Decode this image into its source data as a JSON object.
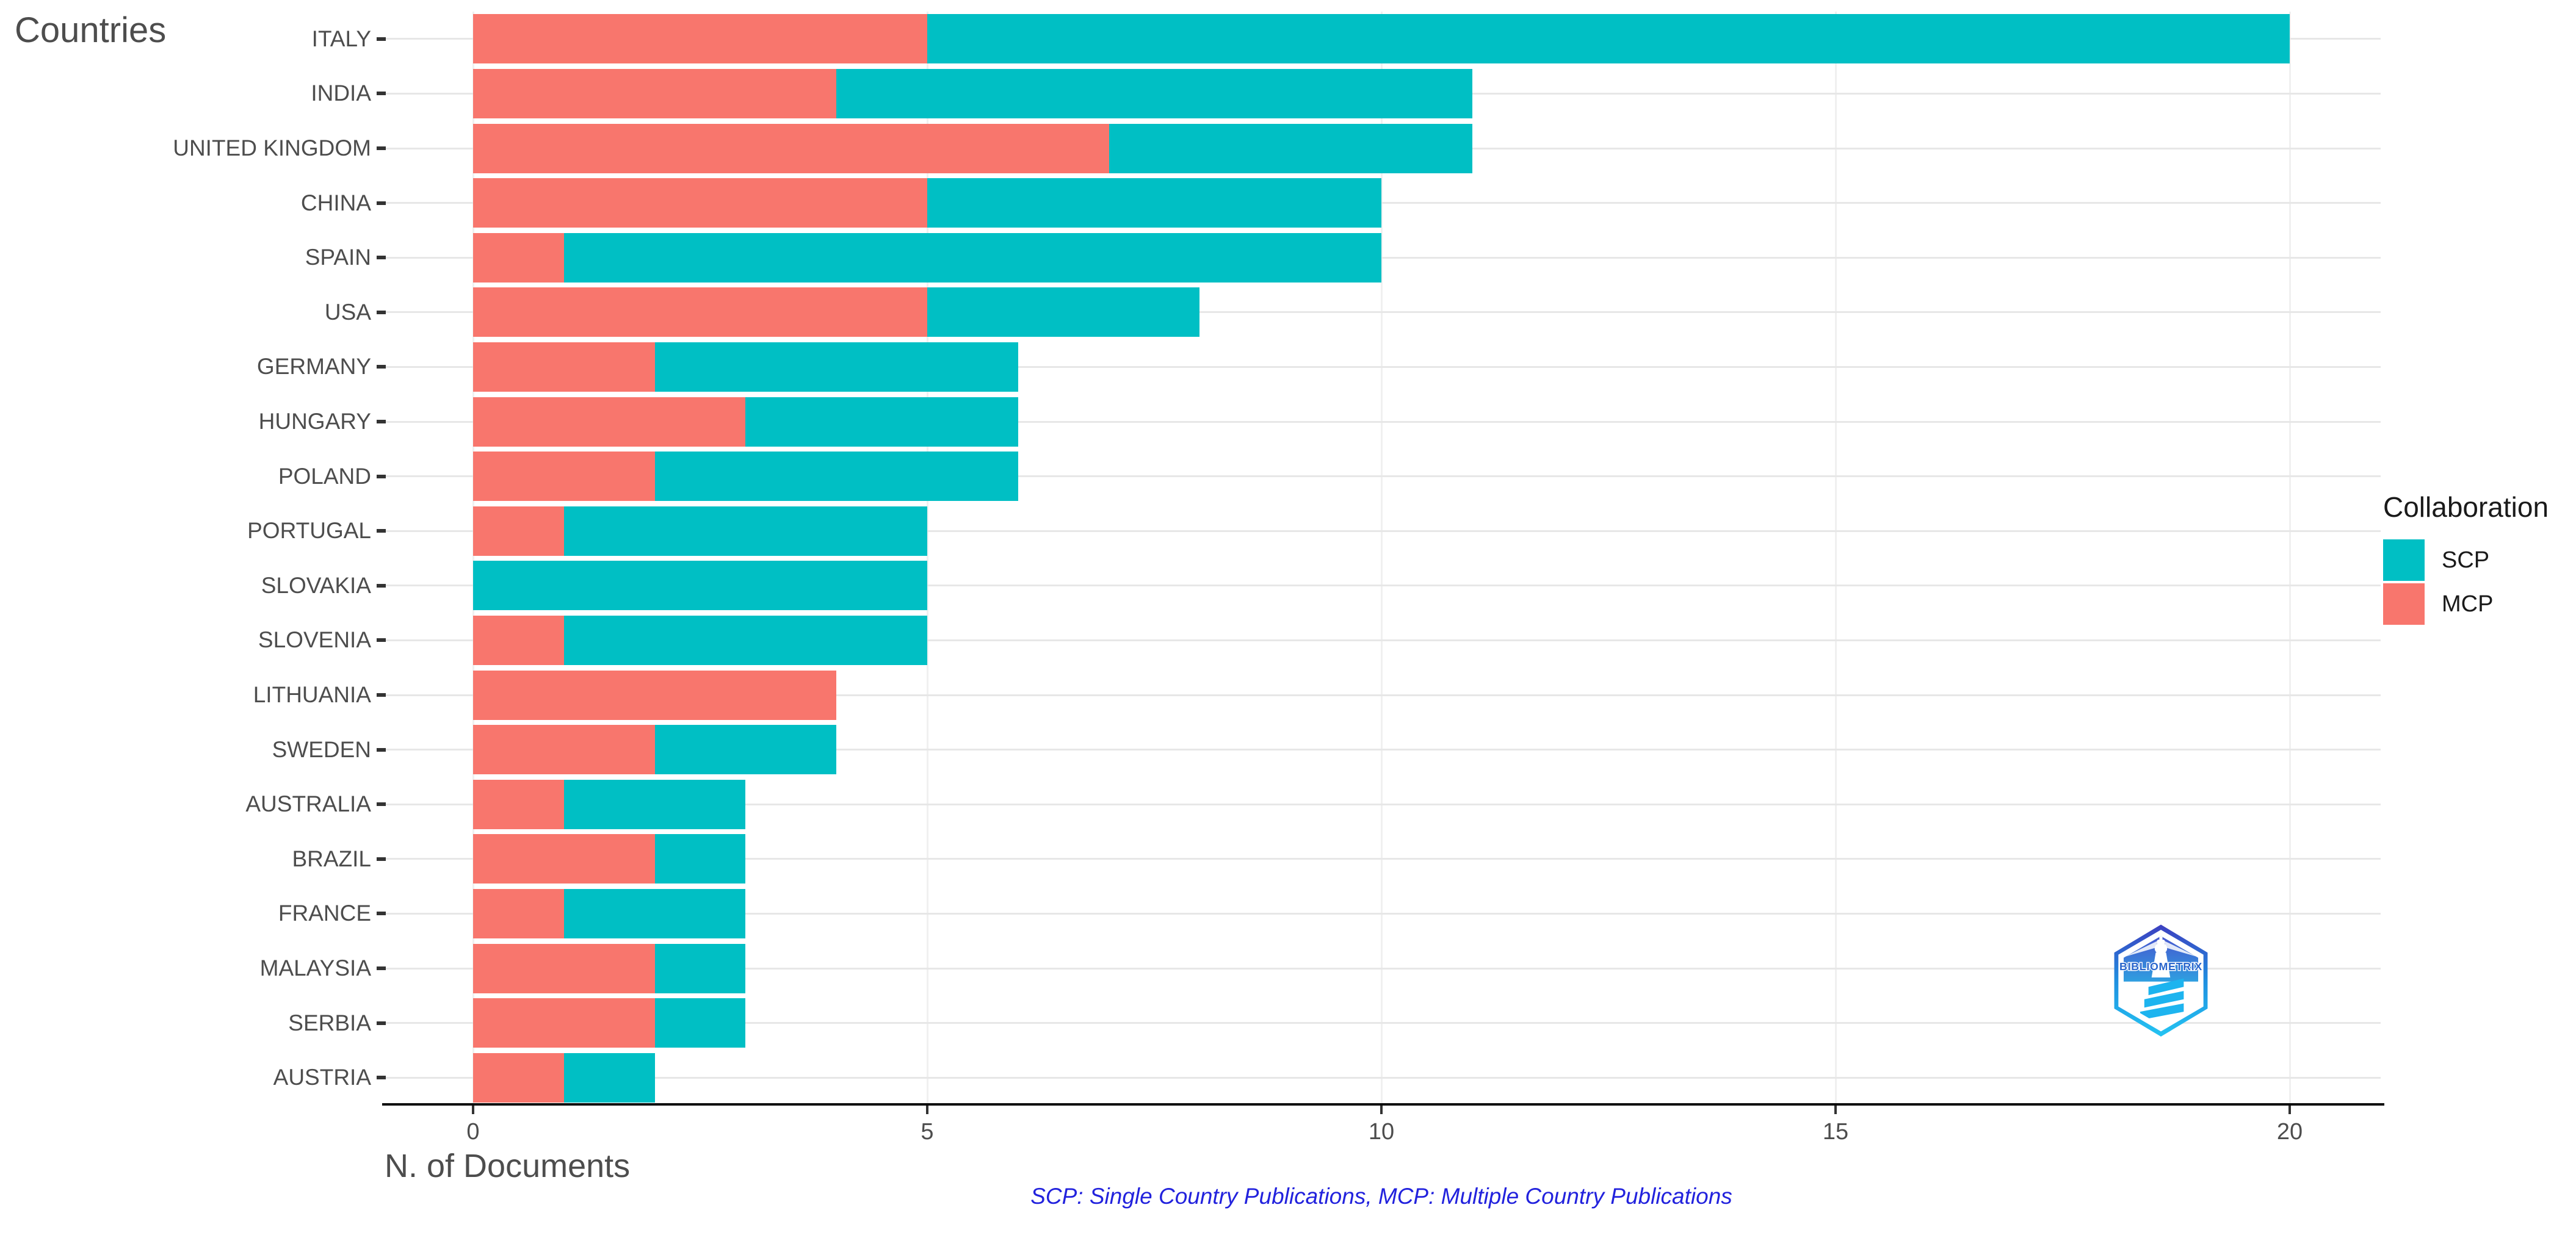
{
  "title": "Countries",
  "x_axis_label": "N. of Documents",
  "footer_note": "SCP: Single Country Publications, MCP: Multiple Country Publications",
  "logo_text": "BIBLIOMETRIX",
  "legend": {
    "title": "Collaboration",
    "items": [
      {
        "label": "SCP",
        "color": "#00BFC4"
      },
      {
        "label": "MCP",
        "color": "#F8766D"
      }
    ]
  },
  "colors": {
    "scp": "#00BFC4",
    "mcp": "#F8766D",
    "axis_text": "#4D4D4D",
    "legend_text": "#1A1A1A",
    "footer": "#2222DD",
    "grid_h": "#E7E7E7",
    "grid_v": "#F0F0F0",
    "axis_line": "#0A0A0A"
  },
  "chart_data": {
    "type": "bar",
    "orientation": "horizontal",
    "stacked": true,
    "title": "Countries",
    "xlabel": "N. of Documents",
    "ylabel": "Countries",
    "xlim": [
      0,
      21
    ],
    "x_ticks": [
      0,
      5,
      10,
      15,
      20
    ],
    "grid": true,
    "legend_position": "right",
    "categories": [
      "ITALY",
      "INDIA",
      "UNITED KINGDOM",
      "CHINA",
      "SPAIN",
      "USA",
      "GERMANY",
      "HUNGARY",
      "POLAND",
      "PORTUGAL",
      "SLOVAKIA",
      "SLOVENIA",
      "LITHUANIA",
      "SWEDEN",
      "AUSTRALIA",
      "BRAZIL",
      "FRANCE",
      "MALAYSIA",
      "SERBIA",
      "AUSTRIA"
    ],
    "series": [
      {
        "name": "MCP",
        "values": [
          5,
          4,
          7,
          5,
          1,
          5,
          2,
          3,
          2,
          1,
          0,
          1,
          4,
          2,
          1,
          2,
          1,
          2,
          2,
          1
        ]
      },
      {
        "name": "SCP",
        "values": [
          15,
          7,
          4,
          5,
          9,
          3,
          4,
          3,
          4,
          4,
          5,
          4,
          0,
          2,
          2,
          1,
          2,
          1,
          1,
          1
        ]
      }
    ],
    "totals": [
      20,
      11,
      11,
      10,
      10,
      8,
      6,
      6,
      6,
      5,
      5,
      5,
      4,
      4,
      3,
      3,
      3,
      3,
      3,
      2
    ]
  }
}
